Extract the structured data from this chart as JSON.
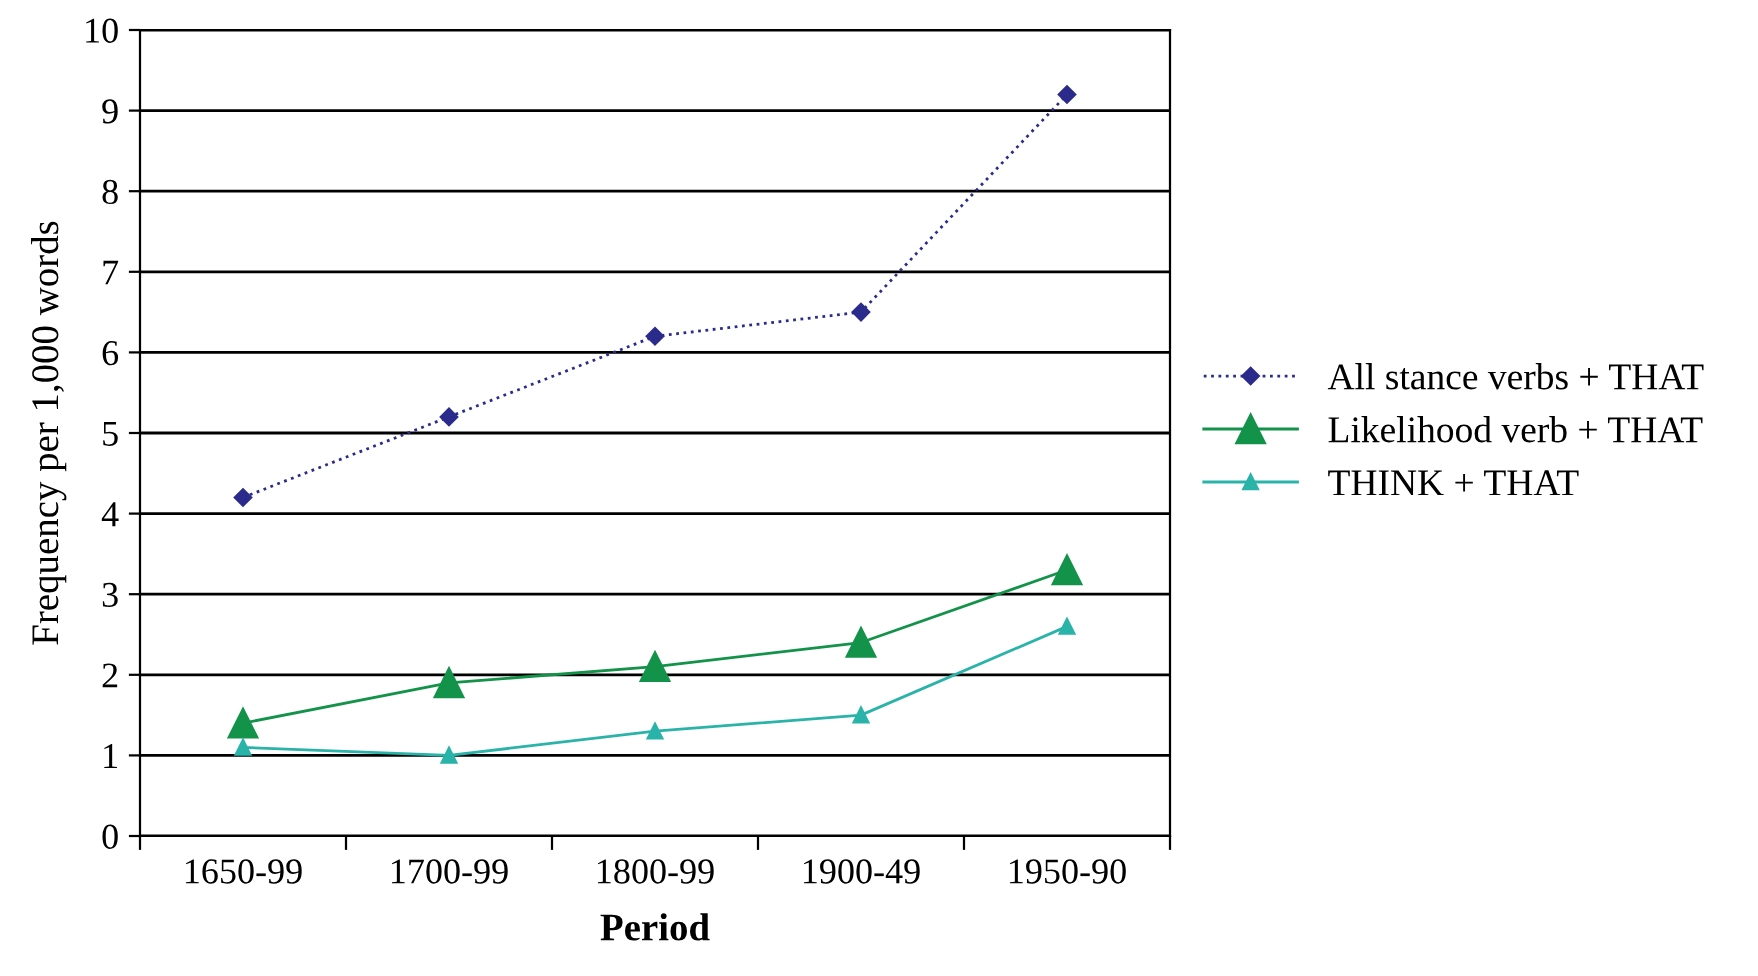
{
  "chart_data": {
    "type": "line",
    "xlabel": "Period",
    "ylabel": "Frequency per 1,000 words",
    "categories": [
      "1650-99",
      "1700-99",
      "1800-99",
      "1900-49",
      "1950-90"
    ],
    "series": [
      {
        "name": "All stance verbs + THAT",
        "color": "#2b2b8c",
        "marker": "diamond",
        "line_style": "dotted",
        "values": [
          4.2,
          5.2,
          6.2,
          6.5,
          9.2
        ]
      },
      {
        "name": "Likelihood verb + THAT",
        "color": "#13924a",
        "marker": "triangle",
        "line_style": "solid",
        "values": [
          1.4,
          1.9,
          2.1,
          2.4,
          3.3
        ]
      },
      {
        "name": "THINK + THAT",
        "color": "#2ab3a8",
        "marker": "triangle",
        "line_style": "solid",
        "values": [
          1.1,
          1.0,
          1.3,
          1.5,
          2.6
        ]
      }
    ],
    "ylim": [
      0,
      10
    ],
    "yticks": [
      0,
      1,
      2,
      3,
      4,
      5,
      6,
      7,
      8,
      9,
      10
    ],
    "grid": "y",
    "legend": "right"
  }
}
